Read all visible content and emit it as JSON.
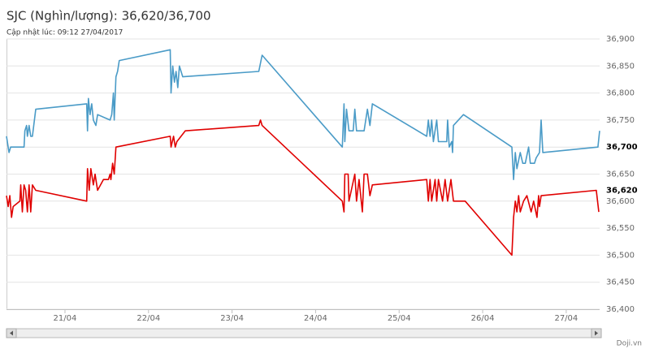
{
  "chart_data": {
    "type": "line",
    "title": "SJC (Nghìn/lượng): 36,620/36,700",
    "subtitle": "Cập nhật lúc: 09:12 27/04/2017",
    "credit": "Doji.vn",
    "xlim": [
      20.3,
      27.4
    ],
    "xticks": [
      {
        "value": 21,
        "label": "21/04"
      },
      {
        "value": 22,
        "label": "22/04"
      },
      {
        "value": 23,
        "label": "23/04"
      },
      {
        "value": 24,
        "label": "24/04"
      },
      {
        "value": 25,
        "label": "25/04"
      },
      {
        "value": 26,
        "label": "26/04"
      },
      {
        "value": 27,
        "label": "27/04"
      }
    ],
    "ylim": [
      36400,
      36900
    ],
    "yticks": [
      {
        "value": 36400,
        "label": "36,400"
      },
      {
        "value": 36450,
        "label": "36,450"
      },
      {
        "value": 36500,
        "label": "36,500"
      },
      {
        "value": 36550,
        "label": "36,550"
      },
      {
        "value": 36600,
        "label": "36,600"
      },
      {
        "value": 36650,
        "label": "36,650"
      },
      {
        "value": 36700,
        "label": "36,700"
      },
      {
        "value": 36750,
        "label": "36,750"
      },
      {
        "value": 36800,
        "label": "36,800"
      },
      {
        "value": 36850,
        "label": "36,850"
      },
      {
        "value": 36900,
        "label": "36,900"
      }
    ],
    "current": [
      {
        "value": 36620,
        "label": "36,620"
      },
      {
        "value": 36700,
        "label": "36,700"
      }
    ],
    "grid": true,
    "series": [
      {
        "color": "#4a9bc7",
        "x": [
          20.3,
          20.33,
          20.35,
          20.51,
          20.52,
          20.54,
          20.55,
          20.57,
          20.59,
          20.61,
          20.65,
          21.26,
          21.27,
          21.28,
          21.3,
          21.32,
          21.34,
          21.37,
          21.39,
          21.54,
          21.56,
          21.58,
          21.59,
          21.61,
          21.63,
          21.65,
          22.26,
          22.27,
          22.29,
          22.31,
          22.33,
          22.35,
          22.37,
          22.41,
          23.32,
          23.36,
          24.32,
          24.34,
          24.35,
          24.37,
          24.4,
          24.45,
          24.47,
          24.49,
          24.58,
          24.62,
          24.65,
          24.68,
          25.33,
          25.35,
          25.37,
          25.39,
          25.41,
          25.45,
          25.47,
          25.57,
          25.58,
          25.6,
          25.63,
          25.64,
          25.65,
          25.77,
          26.35,
          26.37,
          26.39,
          26.41,
          26.45,
          26.48,
          26.51,
          26.55,
          26.57,
          26.62,
          26.64,
          26.68,
          26.7,
          26.72,
          27.38,
          27.4
        ],
        "values": [
          36720,
          36690,
          36700,
          36700,
          36730,
          36740,
          36720,
          36740,
          36720,
          36720,
          36770,
          36780,
          36730,
          36790,
          36760,
          36780,
          36750,
          36740,
          36760,
          36750,
          36760,
          36800,
          36750,
          36830,
          36840,
          36860,
          36880,
          36800,
          36850,
          36820,
          36840,
          36810,
          36850,
          36830,
          36840,
          36870,
          36700,
          36780,
          36710,
          36770,
          36730,
          36730,
          36770,
          36730,
          36730,
          36770,
          36740,
          36780,
          36720,
          36750,
          36720,
          36750,
          36710,
          36750,
          36710,
          36710,
          36750,
          36700,
          36710,
          36690,
          36740,
          36760,
          36700,
          36640,
          36690,
          36660,
          36690,
          36670,
          36670,
          36700,
          36670,
          36670,
          36680,
          36690,
          36750,
          36690,
          36700,
          36730
        ]
      },
      {
        "color": "#e00000",
        "x": [
          20.3,
          20.32,
          20.34,
          20.36,
          20.38,
          20.46,
          20.47,
          20.49,
          20.51,
          20.53,
          20.55,
          20.57,
          20.59,
          20.61,
          20.65,
          21.26,
          21.27,
          21.29,
          21.31,
          21.34,
          21.36,
          21.39,
          21.46,
          21.52,
          21.54,
          21.55,
          21.57,
          21.59,
          21.61,
          22.26,
          22.27,
          22.3,
          22.32,
          22.34,
          22.44,
          23.32,
          23.34,
          23.36,
          24.32,
          24.34,
          24.35,
          24.39,
          24.4,
          24.47,
          24.49,
          24.52,
          24.56,
          24.58,
          24.62,
          24.65,
          24.68,
          25.33,
          25.35,
          25.37,
          25.39,
          25.43,
          25.45,
          25.47,
          25.52,
          25.55,
          25.58,
          25.62,
          25.65,
          25.79,
          26.35,
          26.37,
          26.39,
          26.41,
          26.43,
          26.45,
          26.49,
          26.53,
          26.58,
          26.61,
          26.65,
          26.67,
          26.68,
          26.7,
          27.36,
          27.39
        ],
        "values": [
          36610,
          36590,
          36610,
          36570,
          36590,
          36600,
          36630,
          36580,
          36630,
          36620,
          36580,
          36630,
          36580,
          36630,
          36620,
          36600,
          36660,
          36620,
          36660,
          36630,
          36650,
          36620,
          36640,
          36640,
          36650,
          36640,
          36670,
          36650,
          36700,
          36720,
          36700,
          36720,
          36700,
          36710,
          36730,
          36740,
          36750,
          36740,
          36600,
          36580,
          36650,
          36650,
          36600,
          36650,
          36600,
          36640,
          36580,
          36650,
          36650,
          36610,
          36630,
          36640,
          36600,
          36640,
          36600,
          36640,
          36600,
          36640,
          36600,
          36640,
          36600,
          36640,
          36600,
          36600,
          36500,
          36570,
          36600,
          36580,
          36610,
          36580,
          36600,
          36610,
          36580,
          36600,
          36570,
          36610,
          36590,
          36610,
          36620,
          36580
        ]
      }
    ]
  }
}
